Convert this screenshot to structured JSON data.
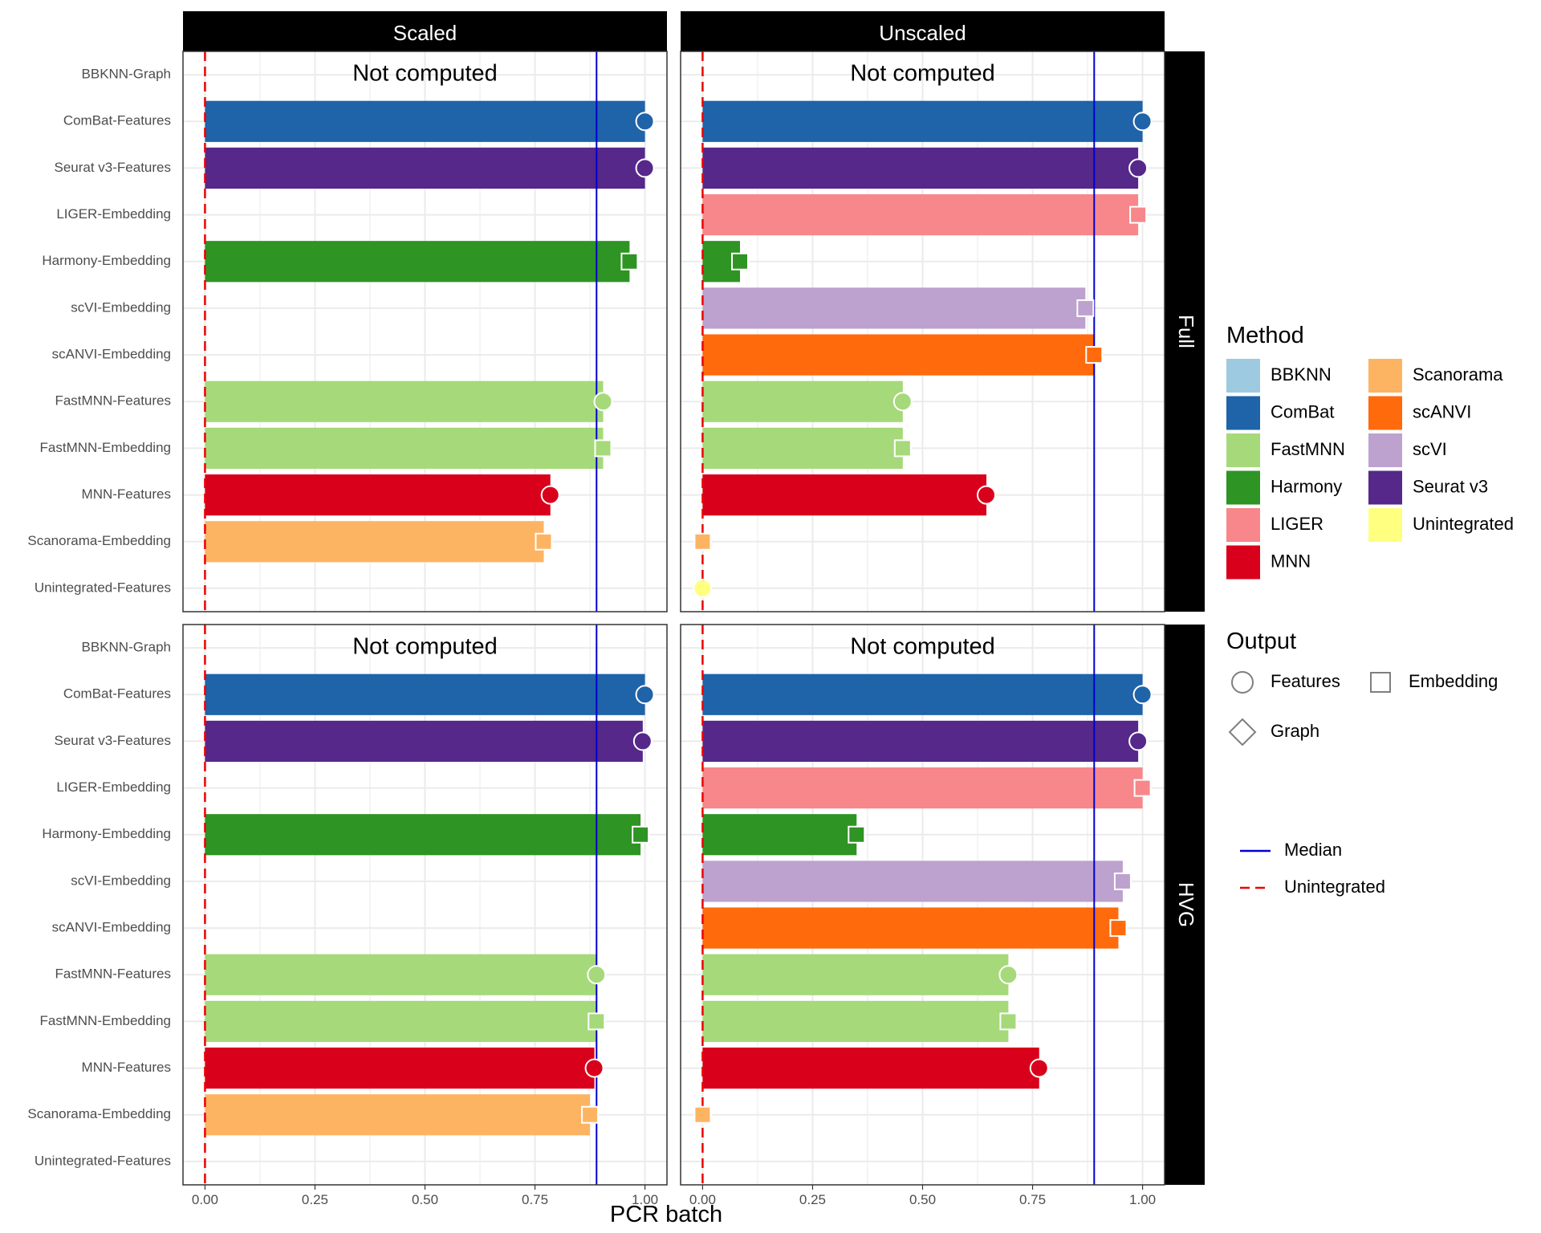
{
  "chart_data": {
    "type": "bar",
    "orientation": "horizontal",
    "xlabel": "PCR batch",
    "x_ticks": [
      "0.00",
      "0.25",
      "0.50",
      "0.75",
      "1.00"
    ],
    "xlim": [
      -0.05,
      1.05
    ],
    "categories": [
      "BBKNN-Graph",
      "ComBat-Features",
      "Seurat v3-Features",
      "LIGER-Embedding",
      "Harmony-Embedding",
      "scVI-Embedding",
      "scANVI-Embedding",
      "FastMNN-Features",
      "FastMNN-Embedding",
      "MNN-Features",
      "Scanorama-Embedding",
      "Unintegrated-Features"
    ],
    "category_method": [
      "BBKNN",
      "ComBat",
      "Seurat v3",
      "LIGER",
      "Harmony",
      "scVI",
      "scANVI",
      "FastMNN",
      "FastMNN",
      "MNN",
      "Scanorama",
      "Unintegrated"
    ],
    "category_output": [
      "Graph",
      "Features",
      "Features",
      "Embedding",
      "Embedding",
      "Embedding",
      "Embedding",
      "Features",
      "Embedding",
      "Features",
      "Embedding",
      "Features"
    ],
    "col_facets": [
      "Scaled",
      "Unscaled"
    ],
    "row_facets": [
      "Full",
      "HVG"
    ],
    "not_computed_label": "Not computed",
    "unintegrated_line": 0.0,
    "panels": [
      {
        "col": "Scaled",
        "row": "Full",
        "median": 0.89,
        "values": [
          null,
          1.0,
          1.0,
          null,
          0.965,
          null,
          null,
          0.905,
          0.905,
          0.785,
          0.77,
          null
        ]
      },
      {
        "col": "Unscaled",
        "row": "Full",
        "median": 0.89,
        "values": [
          null,
          1.0,
          0.99,
          0.99,
          0.085,
          0.87,
          0.89,
          0.455,
          0.455,
          0.645,
          0.0,
          0.0
        ]
      },
      {
        "col": "Scaled",
        "row": "HVG",
        "median": 0.89,
        "values": [
          null,
          1.0,
          0.995,
          null,
          0.99,
          null,
          null,
          0.89,
          0.89,
          0.885,
          0.875,
          null
        ]
      },
      {
        "col": "Unscaled",
        "row": "HVG",
        "median": 0.89,
        "values": [
          null,
          1.0,
          0.99,
          1.0,
          0.35,
          0.955,
          0.945,
          0.695,
          0.695,
          0.765,
          0.0,
          null
        ]
      }
    ],
    "legend_position": "right",
    "legend": {
      "method_title": "Method",
      "methods": [
        {
          "name": "BBKNN",
          "color": "#9ecae1"
        },
        {
          "name": "Scanorama",
          "color": "#fdb462"
        },
        {
          "name": "ComBat",
          "color": "#1f63a8"
        },
        {
          "name": "scANVI",
          "color": "#ff6a0d"
        },
        {
          "name": "FastMNN",
          "color": "#a6d97a"
        },
        {
          "name": "scVI",
          "color": "#bda1cf"
        },
        {
          "name": "Harmony",
          "color": "#2e9423"
        },
        {
          "name": "Seurat v3",
          "color": "#55288a"
        },
        {
          "name": "LIGER",
          "color": "#f7878a"
        },
        {
          "name": "Unintegrated",
          "color": "#ffff80"
        },
        {
          "name": "MNN",
          "color": "#d9001b"
        }
      ],
      "output_title": "Output",
      "outputs": [
        "Features",
        "Embedding",
        "Graph"
      ],
      "lines": [
        {
          "name": "Median",
          "color": "#0000cd",
          "dash": false
        },
        {
          "name": "Unintegrated",
          "color": "#ee0000",
          "dash": true
        }
      ]
    }
  }
}
